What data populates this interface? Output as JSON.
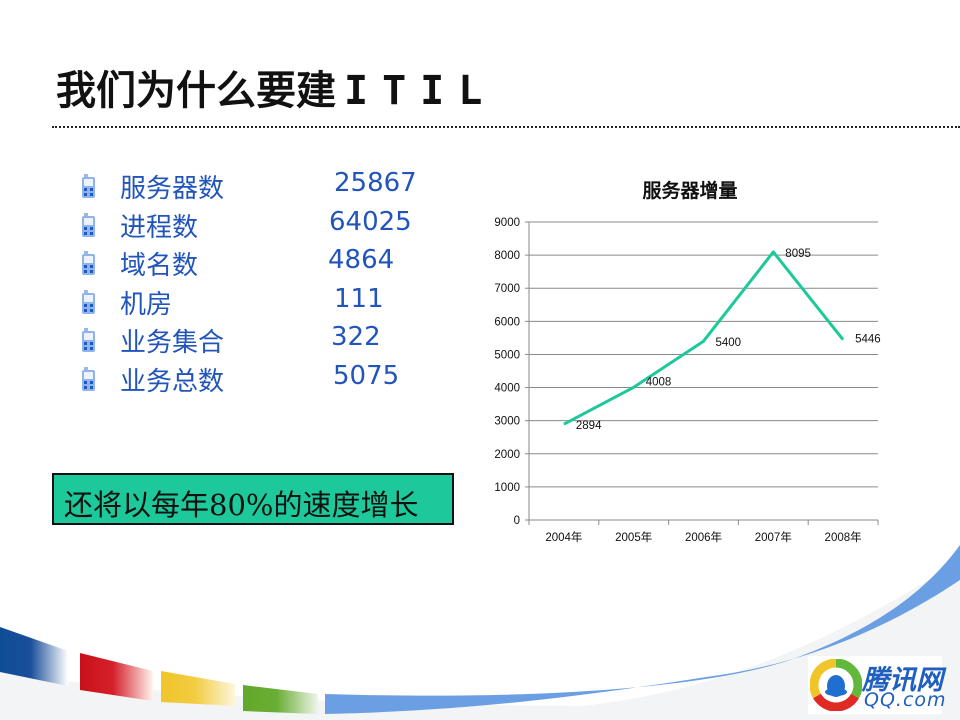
{
  "slide": {
    "title_cn": "我们为什么要建",
    "title_latin": "ITIL"
  },
  "stats": [
    {
      "label": "服务器数",
      "value": "25867"
    },
    {
      "label": "进程数",
      "value": "64025"
    },
    {
      "label": "域名数",
      "value": "4864"
    },
    {
      "label": "机房",
      "value": "111"
    },
    {
      "label": "业务集合",
      "value": "322"
    },
    {
      "label": "业务总数",
      "value": "5075"
    }
  ],
  "bullet_icon": "mobile-phone-icon",
  "callout": {
    "text": "还将以每年80%的速度增长",
    "background": "#1dc99a"
  },
  "chart_data": {
    "type": "line",
    "title": "服务器增量",
    "categories": [
      "2004年",
      "2005年",
      "2006年",
      "2007年",
      "2008年"
    ],
    "values": [
      2894,
      4008,
      5400,
      8095,
      5446
    ],
    "data_labels": [
      "2894",
      "4008",
      "5400",
      "8095",
      "5446"
    ],
    "xlabel": "",
    "ylabel": "",
    "ylim": [
      0,
      9000
    ],
    "yticks": [
      "0",
      "1000",
      "2000",
      "3000",
      "4000",
      "5000",
      "6000",
      "7000",
      "8000",
      "9000"
    ],
    "grid": true,
    "legend": "none",
    "line_color": "#1dc99a"
  },
  "logo": {
    "name_cn": "腾讯网",
    "name_en": "QQ.com"
  },
  "colors": {
    "stat_text": "#2255bb",
    "accent_blue": "#6a9fe3",
    "stripe_blue": "#0e4c97",
    "stripe_red": "#c9101a",
    "stripe_yellow": "#f0c52a",
    "stripe_green": "#62a828"
  }
}
